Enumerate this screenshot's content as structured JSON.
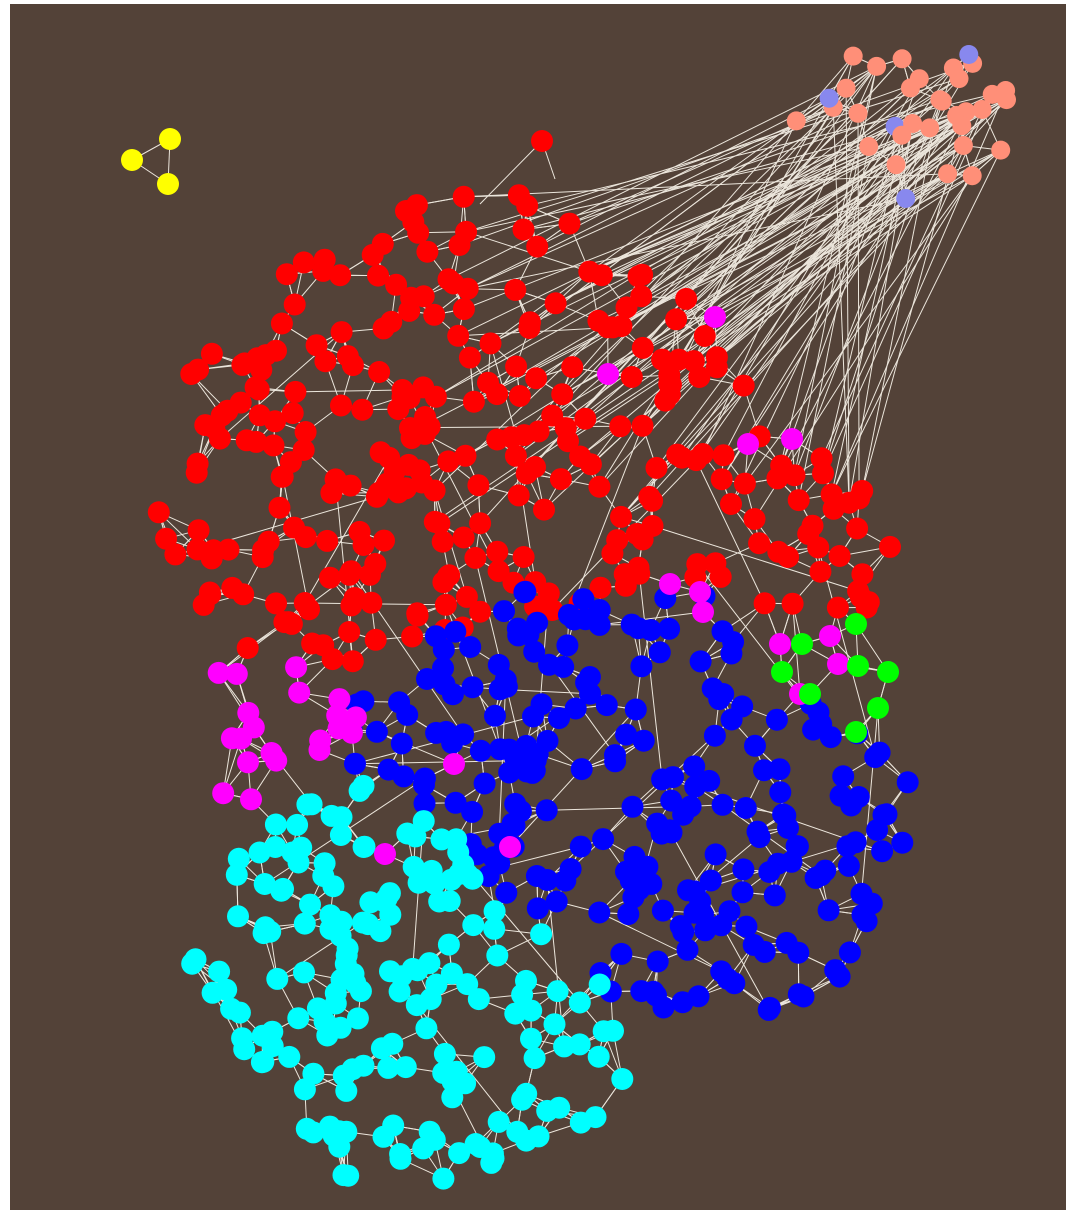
{
  "background": "#534238",
  "edge_color": "#ece6dc",
  "colors": {
    "red": "#ff0000",
    "blue": "#0000ff",
    "cyan": "#00ffff",
    "magenta": "#ff00ff",
    "green": "#00ff00",
    "yellow": "#ffff00",
    "salmon": "#ff8f78",
    "lavender": "#8888ee"
  },
  "groups": [
    {
      "name": "small-yellow-triangle",
      "color": "yellow",
      "count": 3
    },
    {
      "name": "top-right-cluster",
      "color": "salmon",
      "count": 34
    },
    {
      "name": "red-community",
      "color": "red",
      "count": 290
    },
    {
      "name": "blue-community",
      "color": "blue",
      "count": 230
    },
    {
      "name": "cyan-community",
      "color": "cyan",
      "count": 180
    },
    {
      "name": "magenta-community",
      "color": "magenta",
      "count": 30
    },
    {
      "name": "green-community",
      "color": "green",
      "count": 8
    }
  ]
}
